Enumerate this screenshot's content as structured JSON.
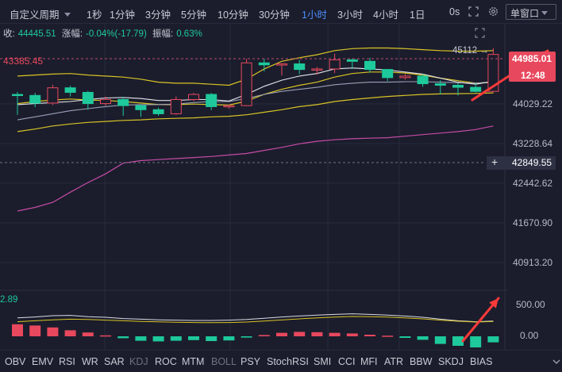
{
  "toolbar": {
    "custom_period": "自定义周期",
    "intervals": [
      "1秒",
      "1分钟",
      "3分钟",
      "5分钟",
      "10分钟",
      "30分钟",
      "1小时",
      "3小时",
      "4小时",
      "1日"
    ],
    "active_interval": "1小时",
    "seconds_label": "0s",
    "window_select": "单窗口"
  },
  "info": {
    "close_label": "收:",
    "close_value": "44445.51",
    "change_label": "涨幅:",
    "change_value": "-0.04%(-17.79)",
    "amplitude_label": "振幅:",
    "amplitude_value": "0.63%"
  },
  "price_axis": {
    "ticks": [
      "44029.22",
      "43228.64",
      "42442.62",
      "41670.90",
      "40913.20"
    ],
    "current_price": "44985.01",
    "countdown": "12:48",
    "crosshair_price": "42849.55",
    "left_price_line_label": "43385.45",
    "high_marker": "45112"
  },
  "indicator": {
    "left_value": "2.89",
    "axis_ticks": [
      "500.00",
      "0.00"
    ]
  },
  "bottom_tabs": [
    "OBV",
    "EMV",
    "RSI",
    "WR",
    "SAR",
    "KDJ",
    "ROC",
    "MTM",
    "BOLL",
    "PSY",
    "StochRSI",
    "SMI",
    "CCI",
    "MFI",
    "ATR",
    "BBW",
    "SKDJ",
    "BIAS"
  ],
  "dim_tabs": [
    "KDJ",
    "BOLL"
  ],
  "colors": {
    "background": "#1b1d2c",
    "up": "#e8485d",
    "down": "#1ec99b",
    "active": "#4d8fff",
    "arrow": "#ff3a3a"
  },
  "chart_data": {
    "type": "candlestick",
    "candles": [
      {
        "o": 44200,
        "h": 44250,
        "l": 43800,
        "c": 44180
      },
      {
        "o": 44180,
        "h": 44230,
        "l": 43950,
        "c": 44030
      },
      {
        "o": 44030,
        "h": 44390,
        "l": 43990,
        "c": 44330
      },
      {
        "o": 44330,
        "h": 44370,
        "l": 44160,
        "c": 44240
      },
      {
        "o": 44240,
        "h": 44270,
        "l": 43900,
        "c": 44020
      },
      {
        "o": 44020,
        "h": 44160,
        "l": 43980,
        "c": 44100
      },
      {
        "o": 44100,
        "h": 44150,
        "l": 43780,
        "c": 43980
      },
      {
        "o": 43980,
        "h": 44000,
        "l": 43760,
        "c": 43900
      },
      {
        "o": 43900,
        "h": 43940,
        "l": 43780,
        "c": 43820
      },
      {
        "o": 43820,
        "h": 44160,
        "l": 43800,
        "c": 44100
      },
      {
        "o": 44100,
        "h": 44230,
        "l": 44070,
        "c": 44200
      },
      {
        "o": 44200,
        "h": 44230,
        "l": 43890,
        "c": 43960
      },
      {
        "o": 43960,
        "h": 44000,
        "l": 43920,
        "c": 43980
      },
      {
        "o": 43980,
        "h": 44900,
        "l": 43970,
        "c": 44820
      },
      {
        "o": 44820,
        "h": 44900,
        "l": 44650,
        "c": 44780
      },
      {
        "o": 44780,
        "h": 44810,
        "l": 44570,
        "c": 44800
      },
      {
        "o": 44800,
        "h": 44880,
        "l": 44600,
        "c": 44690
      },
      {
        "o": 44690,
        "h": 44740,
        "l": 44590,
        "c": 44700
      },
      {
        "o": 44700,
        "h": 45000,
        "l": 44620,
        "c": 44880
      },
      {
        "o": 44880,
        "h": 44900,
        "l": 44700,
        "c": 44850
      },
      {
        "o": 44850,
        "h": 44920,
        "l": 44630,
        "c": 44690
      },
      {
        "o": 44690,
        "h": 44700,
        "l": 44460,
        "c": 44530
      },
      {
        "o": 44530,
        "h": 44600,
        "l": 44490,
        "c": 44560
      },
      {
        "o": 44560,
        "h": 44600,
        "l": 44350,
        "c": 44410
      },
      {
        "o": 44410,
        "h": 44480,
        "l": 44200,
        "c": 44380
      },
      {
        "o": 44380,
        "h": 44420,
        "l": 44180,
        "c": 44340
      },
      {
        "o": 44340,
        "h": 44420,
        "l": 44240,
        "c": 44260
      },
      {
        "o": 44260,
        "h": 45112,
        "l": 44240,
        "c": 44985
      }
    ],
    "ma_white": [
      44000,
      44020,
      44040,
      44060,
      44100,
      44130,
      44140,
      44120,
      44080,
      44080,
      44100,
      44100,
      44070,
      44200,
      44360,
      44480,
      44560,
      44610,
      44700,
      44720,
      44700,
      44680,
      44640,
      44600,
      44520,
      44440,
      44400,
      44460
    ],
    "ma_grey": [
      43700,
      43760,
      43820,
      43880,
      43920,
      43960,
      43990,
      44000,
      44000,
      44010,
      44040,
      44060,
      44060,
      44120,
      44200,
      44260,
      44300,
      44340,
      44390,
      44420,
      44440,
      44440,
      44450,
      44450,
      44440,
      44430,
      44420,
      44440
    ],
    "boll_upper": [
      44560,
      44580,
      44600,
      44610,
      44580,
      44560,
      44540,
      44500,
      44440,
      44420,
      44420,
      44400,
      44380,
      44500,
      44700,
      44850,
      44920,
      44980,
      45060,
      45100,
      45112,
      45112,
      45100,
      45080,
      45060,
      45050,
      45050,
      45060
    ],
    "boll_mid": [
      44020,
      44060,
      44090,
      44110,
      44090,
      44080,
      44060,
      44030,
      44000,
      44000,
      44010,
      44000,
      43990,
      44070,
      44200,
      44300,
      44380,
      44440,
      44540,
      44610,
      44640,
      44640,
      44620,
      44580,
      44520,
      44470,
      44420,
      44440
    ],
    "boll_lower": [
      43470,
      43520,
      43580,
      43620,
      43650,
      43670,
      43690,
      43700,
      43720,
      43730,
      43740,
      43760,
      43770,
      43800,
      43850,
      43900,
      43960,
      44000,
      44060,
      44100,
      44130,
      44160,
      44180,
      44200,
      44210,
      44215,
      44220,
      44230
    ],
    "ma_pink": [
      41910,
      41980,
      42080,
      42280,
      42470,
      42640,
      42850,
      42900,
      42920,
      42940,
      42960,
      42980,
      43010,
      43040,
      43100,
      43160,
      43230,
      43280,
      43310,
      43330,
      43340,
      43350,
      43380,
      43410,
      43440,
      43470,
      43510,
      43580
    ],
    "indicator_hist": [
      190,
      170,
      140,
      95,
      60,
      15,
      -30,
      -70,
      -80,
      -70,
      -60,
      -75,
      -65,
      -20,
      20,
      55,
      70,
      65,
      55,
      45,
      25,
      10,
      -25,
      -55,
      -120,
      -150,
      -175,
      -95
    ],
    "indicator_line_a": [
      290,
      305,
      325,
      330,
      310,
      300,
      280,
      270,
      260,
      255,
      250,
      250,
      255,
      265,
      285,
      305,
      320,
      335,
      345,
      355,
      345,
      335,
      320,
      300,
      270,
      245,
      230,
      240
    ],
    "indicator_line_b": [
      230,
      245,
      260,
      270,
      265,
      255,
      245,
      235,
      228,
      222,
      218,
      215,
      218,
      225,
      240,
      258,
      275,
      290,
      302,
      312,
      310,
      302,
      290,
      275,
      255,
      238,
      225,
      232
    ]
  }
}
